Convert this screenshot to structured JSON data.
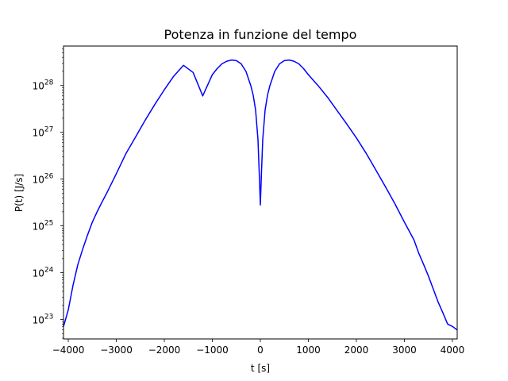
{
  "chart_data": {
    "type": "line",
    "title": "Potenza in funzione del tempo",
    "xlabel": "t [s]",
    "ylabel": "P(t) [J/s]",
    "yscale": "log",
    "xlim": [
      -4100,
      4100
    ],
    "ylim_exponent": [
      22.585,
      28.843
    ],
    "grid": false,
    "legend": "none",
    "line_color": "#0000ff",
    "x_ticks": [
      {
        "value": -4000,
        "label": "−4000"
      },
      {
        "value": -3000,
        "label": "−3000"
      },
      {
        "value": -2000,
        "label": "−2000"
      },
      {
        "value": -1000,
        "label": "−1000"
      },
      {
        "value": 0,
        "label": "0"
      },
      {
        "value": 1000,
        "label": "1000"
      },
      {
        "value": 2000,
        "label": "2000"
      },
      {
        "value": 3000,
        "label": "3000"
      },
      {
        "value": 4000,
        "label": "4000"
      }
    ],
    "y_ticks": [
      {
        "exp": 23,
        "base": "10",
        "sup": "23"
      },
      {
        "exp": 24,
        "base": "10",
        "sup": "24"
      },
      {
        "exp": 25,
        "base": "10",
        "sup": "25"
      },
      {
        "exp": 26,
        "base": "10",
        "sup": "26"
      },
      {
        "exp": 27,
        "base": "10",
        "sup": "27"
      },
      {
        "exp": 28,
        "base": "10",
        "sup": "28"
      }
    ],
    "series": [
      {
        "x": [
          -4100,
          -4000,
          -3900,
          -3800,
          -3700,
          -3600,
          -3500,
          -3400,
          -3300,
          -3200,
          -3000,
          -2800,
          -2600,
          -2400,
          -2200,
          -2000,
          -1800,
          -1600,
          -1400,
          -1200,
          -1000,
          -900,
          -800,
          -700,
          -600,
          -500,
          -400,
          -300,
          -200,
          -150,
          -100,
          -50,
          -25,
          0,
          25,
          50,
          100,
          150,
          200,
          300,
          400,
          500,
          600,
          700,
          800,
          900,
          1000,
          1200,
          1400,
          1600,
          1800,
          2000,
          2200,
          2400,
          2600,
          2800,
          3000,
          3200,
          3300,
          3400,
          3500,
          3600,
          3700,
          3800,
          3900,
          4000,
          4100
        ],
        "y": [
          7.1e+22,
          1.6e+23,
          5.5e+23,
          1.5e+24,
          3.2e+24,
          6.3e+24,
          1.2e+25,
          2e+25,
          3.2e+25,
          5e+25,
          1.3e+26,
          3.5e+26,
          7.9e+26,
          1.8e+27,
          3.9e+27,
          8.1e+27,
          1.6e+28,
          2.7e+28,
          1.9e+28,
          6e+27,
          1.7e+28,
          2.3e+28,
          2.9e+28,
          3.3e+28,
          3.5e+28,
          3.4e+28,
          2.9e+28,
          2e+28,
          1e+28,
          6.3e+27,
          3e+27,
          7e+26,
          1.5e+26,
          2.8e+25,
          1.5e+26,
          7e+26,
          3e+27,
          6.3e+27,
          1e+28,
          2e+28,
          2.9e+28,
          3.4e+28,
          3.5e+28,
          3.3e+28,
          2.9e+28,
          2.3e+28,
          1.7e+28,
          1e+28,
          5.6e+27,
          2.9e+27,
          1.5e+27,
          7.6e+26,
          3.6e+26,
          1.6e+26,
          7e+25,
          3e+25,
          1.2e+25,
          5e+24,
          2.6e+24,
          1.5e+24,
          8.5e+23,
          4.5e+23,
          2.4e+23,
          1.4e+23,
          8e+22,
          7.1e+22,
          6e+22
        ]
      }
    ]
  }
}
